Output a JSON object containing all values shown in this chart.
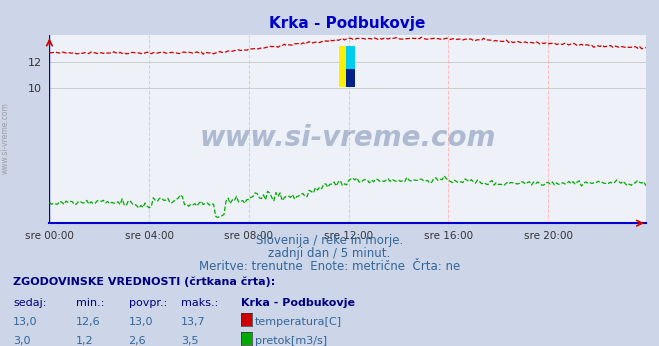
{
  "title": "Krka - Podbukovje",
  "bg_color": "#ccd6e8",
  "plot_bg_color": "#eef2f8",
  "title_color": "#0000cc",
  "title_fontsize": 11,
  "x_ticks_labels": [
    "sre 00:00",
    "sre 04:00",
    "sre 08:00",
    "sre 12:00",
    "sre 16:00",
    "sre 20:00"
  ],
  "x_ticks_pos": [
    0,
    48,
    96,
    144,
    192,
    240
  ],
  "grid_color_h": "#cccccc",
  "grid_color_v": "#ffbbbb",
  "axis_color": "#0000cc",
  "temp_color": "#cc0000",
  "flow_color": "#00aa00",
  "watermark_text": "www.si-vreme.com",
  "watermark_color": "#1a3a7a",
  "watermark_alpha": 0.3,
  "subtitle_lines": [
    "Slovenija / reke in morje.",
    "zadnji dan / 5 minut.",
    "Meritve: trenutne  Enote: metrične  Črta: ne"
  ],
  "subtitle_color": "#336699",
  "subtitle_fontsize": 8.5,
  "footer_bold": "ZGODOVINSKE VREDNOSTI (črtkana črta):",
  "footer_headers": [
    "sedaj:",
    "min.:",
    "povpr.:",
    "maks.:",
    "Krka - Podbukovje"
  ],
  "footer_row1": [
    "13,0",
    "12,6",
    "13,0",
    "13,7",
    "temperatura[C]"
  ],
  "footer_row2": [
    "3,0",
    "1,2",
    "2,6",
    "3,5",
    "pretok[m3/s]"
  ],
  "footer_color": "#336699",
  "footer_bold_color": "#000080",
  "footer_fontsize": 8.0,
  "n_points": 288,
  "ylim_min": 0,
  "ylim_max": 14.0,
  "y_axis_ticks": [
    10,
    12
  ],
  "side_text": "www.si-vreme.com"
}
